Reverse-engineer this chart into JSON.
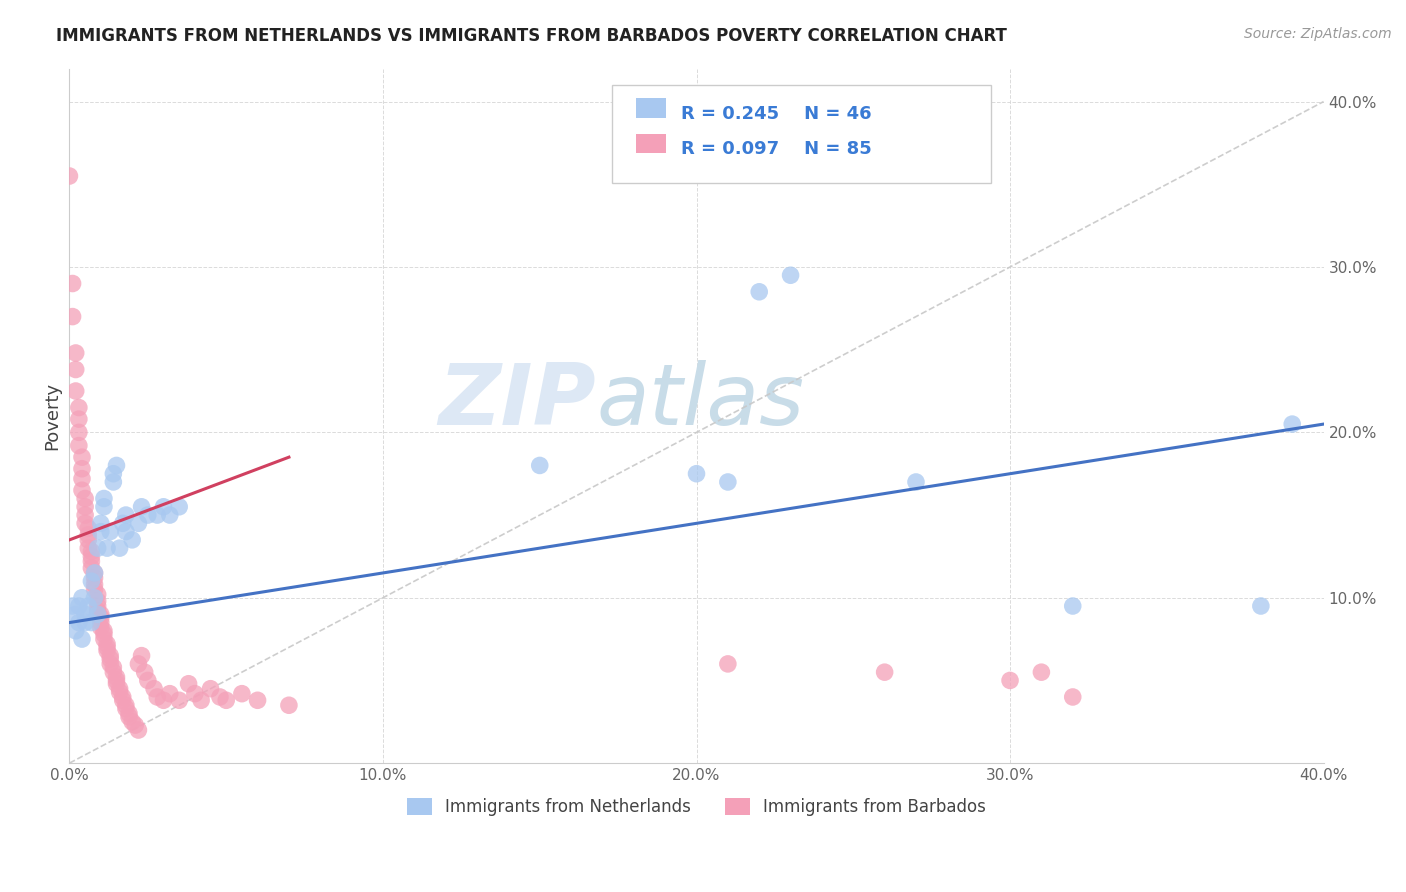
{
  "title": "IMMIGRANTS FROM NETHERLANDS VS IMMIGRANTS FROM BARBADOS POVERTY CORRELATION CHART",
  "source": "Source: ZipAtlas.com",
  "ylabel": "Poverty",
  "xlim": [
    0.0,
    0.4
  ],
  "ylim": [
    0.0,
    0.42
  ],
  "x_ticks": [
    0.0,
    0.1,
    0.2,
    0.3,
    0.4
  ],
  "y_ticks": [
    0.1,
    0.2,
    0.3,
    0.4
  ],
  "legend_labels": [
    "Immigrants from Netherlands",
    "Immigrants from Barbados"
  ],
  "netherlands_color": "#a8c8f0",
  "barbados_color": "#f4a0b8",
  "netherlands_line_color": "#4472c4",
  "barbados_line_color": "#d04060",
  "trendline_color": "#c8c8c8",
  "R_netherlands": 0.245,
  "N_netherlands": 46,
  "R_barbados": 0.097,
  "N_barbados": 85,
  "watermark_zip": "ZIP",
  "watermark_atlas": "atlas",
  "nl_line_x": [
    0.0,
    0.4
  ],
  "nl_line_y": [
    0.085,
    0.205
  ],
  "bb_line_x": [
    0.0,
    0.07
  ],
  "bb_line_y": [
    0.135,
    0.185
  ],
  "netherlands_scatter": [
    [
      0.001,
      0.095
    ],
    [
      0.002,
      0.08
    ],
    [
      0.002,
      0.09
    ],
    [
      0.003,
      0.085
    ],
    [
      0.003,
      0.095
    ],
    [
      0.004,
      0.075
    ],
    [
      0.004,
      0.1
    ],
    [
      0.005,
      0.09
    ],
    [
      0.005,
      0.085
    ],
    [
      0.006,
      0.095
    ],
    [
      0.007,
      0.11
    ],
    [
      0.007,
      0.085
    ],
    [
      0.008,
      0.115
    ],
    [
      0.008,
      0.1
    ],
    [
      0.009,
      0.09
    ],
    [
      0.009,
      0.13
    ],
    [
      0.01,
      0.14
    ],
    [
      0.01,
      0.145
    ],
    [
      0.011,
      0.155
    ],
    [
      0.011,
      0.16
    ],
    [
      0.012,
      0.13
    ],
    [
      0.013,
      0.14
    ],
    [
      0.014,
      0.17
    ],
    [
      0.014,
      0.175
    ],
    [
      0.015,
      0.18
    ],
    [
      0.016,
      0.13
    ],
    [
      0.017,
      0.145
    ],
    [
      0.018,
      0.14
    ],
    [
      0.018,
      0.15
    ],
    [
      0.02,
      0.135
    ],
    [
      0.022,
      0.145
    ],
    [
      0.023,
      0.155
    ],
    [
      0.025,
      0.15
    ],
    [
      0.028,
      0.15
    ],
    [
      0.03,
      0.155
    ],
    [
      0.032,
      0.15
    ],
    [
      0.035,
      0.155
    ],
    [
      0.15,
      0.18
    ],
    [
      0.2,
      0.175
    ],
    [
      0.21,
      0.17
    ],
    [
      0.22,
      0.285
    ],
    [
      0.23,
      0.295
    ],
    [
      0.27,
      0.17
    ],
    [
      0.32,
      0.095
    ],
    [
      0.38,
      0.095
    ],
    [
      0.39,
      0.205
    ]
  ],
  "barbados_scatter": [
    [
      0.0,
      0.355
    ],
    [
      0.001,
      0.29
    ],
    [
      0.001,
      0.27
    ],
    [
      0.002,
      0.248
    ],
    [
      0.002,
      0.238
    ],
    [
      0.002,
      0.225
    ],
    [
      0.003,
      0.215
    ],
    [
      0.003,
      0.208
    ],
    [
      0.003,
      0.2
    ],
    [
      0.003,
      0.192
    ],
    [
      0.004,
      0.185
    ],
    [
      0.004,
      0.178
    ],
    [
      0.004,
      0.172
    ],
    [
      0.004,
      0.165
    ],
    [
      0.005,
      0.16
    ],
    [
      0.005,
      0.155
    ],
    [
      0.005,
      0.15
    ],
    [
      0.005,
      0.145
    ],
    [
      0.006,
      0.142
    ],
    [
      0.006,
      0.138
    ],
    [
      0.006,
      0.135
    ],
    [
      0.006,
      0.13
    ],
    [
      0.007,
      0.128
    ],
    [
      0.007,
      0.125
    ],
    [
      0.007,
      0.122
    ],
    [
      0.007,
      0.118
    ],
    [
      0.008,
      0.115
    ],
    [
      0.008,
      0.112
    ],
    [
      0.008,
      0.108
    ],
    [
      0.008,
      0.105
    ],
    [
      0.009,
      0.102
    ],
    [
      0.009,
      0.098
    ],
    [
      0.009,
      0.095
    ],
    [
      0.009,
      0.092
    ],
    [
      0.01,
      0.09
    ],
    [
      0.01,
      0.088
    ],
    [
      0.01,
      0.085
    ],
    [
      0.01,
      0.082
    ],
    [
      0.011,
      0.08
    ],
    [
      0.011,
      0.078
    ],
    [
      0.011,
      0.075
    ],
    [
      0.012,
      0.072
    ],
    [
      0.012,
      0.07
    ],
    [
      0.012,
      0.068
    ],
    [
      0.013,
      0.065
    ],
    [
      0.013,
      0.063
    ],
    [
      0.013,
      0.06
    ],
    [
      0.014,
      0.058
    ],
    [
      0.014,
      0.055
    ],
    [
      0.015,
      0.052
    ],
    [
      0.015,
      0.05
    ],
    [
      0.015,
      0.048
    ],
    [
      0.016,
      0.045
    ],
    [
      0.016,
      0.043
    ],
    [
      0.017,
      0.04
    ],
    [
      0.017,
      0.038
    ],
    [
      0.018,
      0.035
    ],
    [
      0.018,
      0.033
    ],
    [
      0.019,
      0.03
    ],
    [
      0.019,
      0.028
    ],
    [
      0.02,
      0.025
    ],
    [
      0.021,
      0.023
    ],
    [
      0.022,
      0.02
    ],
    [
      0.022,
      0.06
    ],
    [
      0.023,
      0.065
    ],
    [
      0.024,
      0.055
    ],
    [
      0.025,
      0.05
    ],
    [
      0.027,
      0.045
    ],
    [
      0.028,
      0.04
    ],
    [
      0.03,
      0.038
    ],
    [
      0.032,
      0.042
    ],
    [
      0.035,
      0.038
    ],
    [
      0.038,
      0.048
    ],
    [
      0.04,
      0.042
    ],
    [
      0.042,
      0.038
    ],
    [
      0.045,
      0.045
    ],
    [
      0.048,
      0.04
    ],
    [
      0.05,
      0.038
    ],
    [
      0.055,
      0.042
    ],
    [
      0.06,
      0.038
    ],
    [
      0.07,
      0.035
    ],
    [
      0.21,
      0.06
    ],
    [
      0.26,
      0.055
    ],
    [
      0.3,
      0.05
    ],
    [
      0.31,
      0.055
    ],
    [
      0.32,
      0.04
    ]
  ]
}
